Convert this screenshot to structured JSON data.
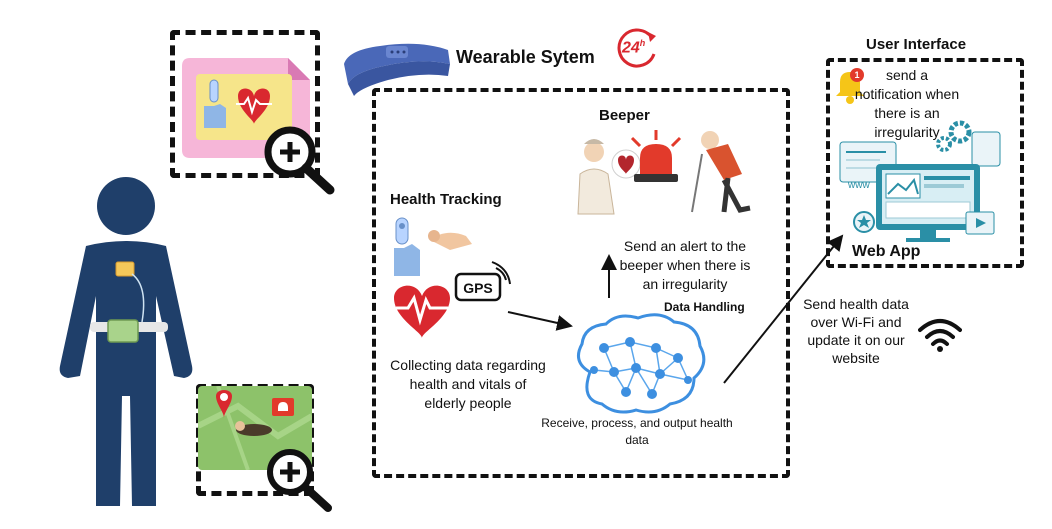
{
  "title": "Wearable Sytem",
  "badge_24h": "24",
  "badge_24h_suffix": "h",
  "user_interface": {
    "title": "User Interface",
    "notification_text": "send a notification when there is an irregularity",
    "bell_count": "1",
    "web_app_label": "Web App",
    "www_label": "www"
  },
  "beeper": {
    "title": "Beeper"
  },
  "health_tracking": {
    "title": "Health Tracking",
    "gps_label": "GPS",
    "description": "Collecting data regarding health and vitals of elderly people"
  },
  "alert_text": "Send an alert to the beeper when there is an irregularity",
  "data_handling": {
    "title": "Data Handling",
    "description": "Receive, process, and output health data"
  },
  "wifi_text": "Send health data over Wi-Fi and update it on our website",
  "colors": {
    "body_navy": "#1f3f6a",
    "heart_red": "#d9282f",
    "siren_red": "#e23a2b",
    "brain_blue": "#3d8fe0",
    "pink_card": "#f6b6d8",
    "green_map": "#8dc26a",
    "teal_monitor": "#2a8fa6"
  }
}
